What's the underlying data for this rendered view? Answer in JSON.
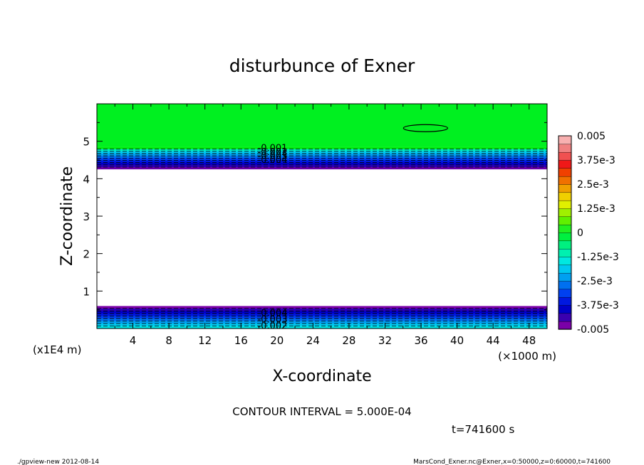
{
  "chart_data": {
    "type": "heatmap",
    "title": "disturbunce of Exner",
    "xlabel": "X-coordinate",
    "ylabel": "Z-coordinate",
    "x_unit": "(×1000 m)",
    "y_unit": "(x1E4 m)",
    "xlim": [
      0,
      50
    ],
    "ylim": [
      0,
      6
    ],
    "x_ticks": [
      4,
      8,
      12,
      16,
      20,
      24,
      28,
      32,
      36,
      40,
      44,
      48
    ],
    "y_ticks": [
      1,
      2,
      3,
      4,
      5
    ],
    "colorbar": {
      "labels": [
        "0.005",
        "3.75e-3",
        "2.5e-3",
        "1.25e-3",
        "0",
        "-1.25e-3",
        "-2.5e-3",
        "-3.75e-3",
        "-0.005"
      ],
      "vmin": -0.005,
      "vmax": 0.005,
      "colors": [
        "#7a00a8",
        "#3a00b0",
        "#0000c8",
        "#0018e0",
        "#0040f0",
        "#0070f0",
        "#00a0f0",
        "#00c8f0",
        "#00e8e0",
        "#00f0b0",
        "#00f080",
        "#00f040",
        "#20f020",
        "#60f000",
        "#a0f000",
        "#e0f000",
        "#f0d000",
        "#f0a000",
        "#f07000",
        "#f04000",
        "#f01818",
        "#f05050",
        "#f08080",
        "#f8b0b0"
      ]
    },
    "regions": [
      {
        "z_from": 4.85,
        "z_to": 6.0,
        "value": 0.0002,
        "label": "green (~0)"
      },
      {
        "z_from": 4.25,
        "z_to": 4.85,
        "value": -0.003,
        "label": "negative layer"
      },
      {
        "z_from": 0.6,
        "z_to": 4.25,
        "value": null,
        "label": "blank"
      },
      {
        "z_from": 0.0,
        "z_to": 0.6,
        "value": -0.003,
        "label": "negative layer"
      }
    ],
    "contour_labels_upper": [
      "-0.001",
      "-0.002",
      "-0.003",
      "-0.004"
    ],
    "contour_labels_lower": [
      "-0.004",
      "-0.003",
      "-0.002"
    ],
    "closed_contour": {
      "x_center": 36.5,
      "z_center": 5.35
    }
  },
  "footer": {
    "contour_interval": "CONTOUR INTERVAL = 5.000E-04",
    "time": "t=741600 s",
    "left_note": "./gpview-new   2012-08-14",
    "right_note": "MarsCond_Exner.nc@Exner,x=0:50000,z=0:60000,t=741600"
  }
}
